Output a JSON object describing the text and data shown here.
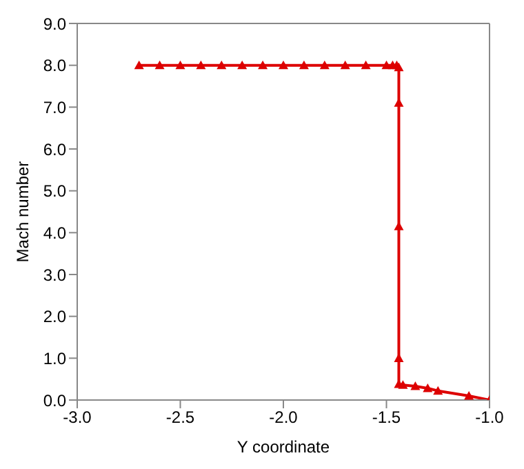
{
  "chart_data": {
    "type": "line",
    "xlabel": "Y coordinate",
    "ylabel": "Mach number",
    "x": [
      -2.7,
      -2.6,
      -2.5,
      -2.4,
      -2.3,
      -2.2,
      -2.1,
      -2.0,
      -1.9,
      -1.8,
      -1.7,
      -1.6,
      -1.5,
      -1.47,
      -1.45,
      -1.44,
      -1.44,
      -1.44,
      -1.44,
      -1.44,
      -1.42,
      -1.36,
      -1.3,
      -1.25,
      -1.1,
      -1.0
    ],
    "values": [
      8,
      8,
      8,
      8,
      8,
      8,
      8,
      8,
      8,
      8,
      8,
      8,
      8,
      8,
      8,
      7.95,
      7.1,
      4.15,
      1.0,
      0.38,
      0.36,
      0.33,
      0.28,
      0.22,
      0.1,
      0
    ],
    "color": "#dd0000",
    "marker": "triangle",
    "line_style": "solid",
    "xlim": [
      -3,
      -1
    ],
    "xticks": [
      {
        "value": -3,
        "label": "-3.0"
      },
      {
        "value": -2.5,
        "label": "-2.5"
      },
      {
        "value": -2,
        "label": "-2.0"
      },
      {
        "value": -1.5,
        "label": "-1.5"
      },
      {
        "value": -1,
        "label": "-1.0"
      }
    ],
    "ylim": [
      0,
      9
    ],
    "yticks": [
      {
        "value": 0,
        "label": "0.0"
      },
      {
        "value": 1,
        "label": "1.0"
      },
      {
        "value": 2,
        "label": "2.0"
      },
      {
        "value": 3,
        "label": "3.0"
      },
      {
        "value": 4,
        "label": "4.0"
      },
      {
        "value": 5,
        "label": "5.0"
      },
      {
        "value": 6,
        "label": "6.0"
      },
      {
        "value": 7,
        "label": "7.0"
      },
      {
        "value": 8,
        "label": "8.0"
      },
      {
        "value": 9,
        "label": "9.0"
      }
    ]
  }
}
